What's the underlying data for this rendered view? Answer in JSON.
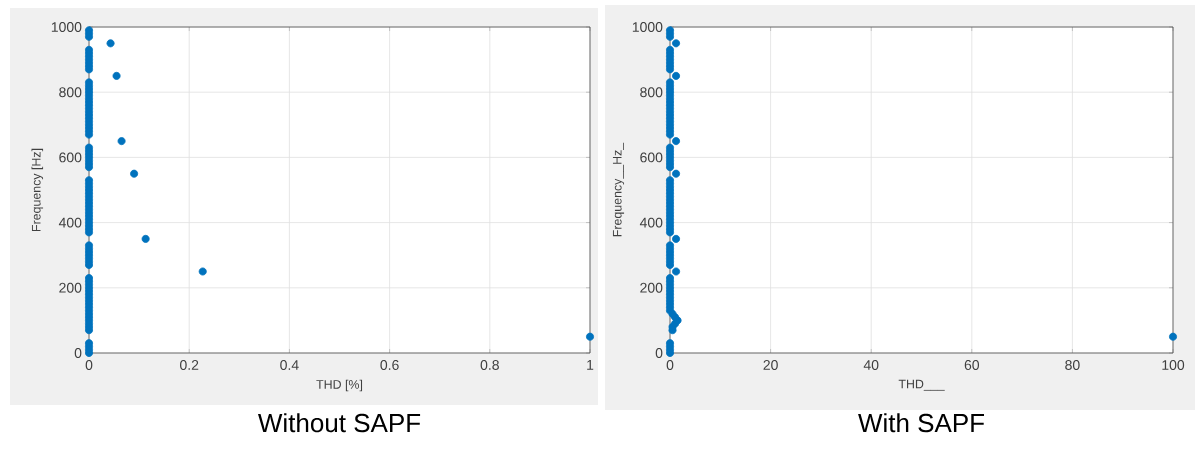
{
  "chart_data": [
    {
      "type": "scatter",
      "title": "Without SAPF",
      "xlabel": "THD [%]",
      "ylabel": "Frequency [Hz]",
      "color": "#0072bd",
      "marker": "circle",
      "grid": true,
      "xlim": [
        0,
        1
      ],
      "ylim": [
        0,
        1000
      ],
      "xticks": [
        0,
        0.2,
        0.4,
        0.6,
        0.8,
        1
      ],
      "yticks": [
        0,
        200,
        400,
        600,
        800,
        1000
      ],
      "values": [
        0,
        10,
        20,
        30,
        50,
        70,
        80,
        90,
        100,
        110,
        120,
        130,
        140,
        150,
        160,
        170,
        180,
        190,
        200,
        210,
        220,
        230,
        250,
        270,
        280,
        290,
        300,
        310,
        320,
        330,
        350,
        370,
        380,
        390,
        400,
        410,
        420,
        430,
        440,
        450,
        460,
        470,
        480,
        490,
        500,
        510,
        520,
        530,
        550,
        570,
        580,
        590,
        600,
        610,
        620,
        630,
        650,
        670,
        680,
        690,
        700,
        710,
        720,
        730,
        740,
        750,
        760,
        770,
        780,
        790,
        800,
        810,
        820,
        830,
        850,
        870,
        880,
        890,
        900,
        910,
        920,
        930,
        950,
        970,
        980,
        990
      ],
      "x": [
        0,
        0,
        0,
        0,
        1,
        0,
        0,
        0,
        0,
        0,
        0,
        0,
        0,
        0,
        0,
        0,
        0,
        0,
        0,
        0,
        0,
        0,
        0.227,
        0,
        0,
        0,
        0,
        0,
        0,
        0,
        0.113,
        0,
        0,
        0,
        0,
        0,
        0,
        0,
        0,
        0,
        0,
        0,
        0,
        0,
        0,
        0,
        0,
        0,
        0.09,
        0,
        0,
        0,
        0,
        0,
        0,
        0,
        0.065,
        0,
        0,
        0,
        0,
        0,
        0,
        0,
        0,
        0,
        0,
        0,
        0,
        0,
        0,
        0,
        0,
        0,
        0.055,
        0,
        0,
        0,
        0,
        0,
        0,
        0,
        0.043,
        0,
        0,
        0
      ]
    },
    {
      "type": "scatter",
      "title": "With SAPF",
      "xlabel": "THD___",
      "ylabel": "Frequency__Hz_",
      "color": "#0072bd",
      "marker": "circle",
      "grid": true,
      "xlim": [
        0,
        100
      ],
      "ylim": [
        0,
        1000
      ],
      "xticks": [
        0,
        20,
        40,
        60,
        80,
        100
      ],
      "yticks": [
        0,
        200,
        400,
        600,
        800,
        1000
      ],
      "values": [
        0,
        10,
        20,
        30,
        50,
        70,
        80,
        90,
        100,
        110,
        120,
        130,
        140,
        150,
        160,
        170,
        180,
        190,
        200,
        210,
        220,
        230,
        250,
        270,
        280,
        290,
        300,
        310,
        320,
        330,
        350,
        370,
        380,
        390,
        400,
        410,
        420,
        430,
        440,
        450,
        460,
        470,
        480,
        490,
        500,
        510,
        520,
        530,
        550,
        570,
        580,
        590,
        600,
        610,
        620,
        630,
        650,
        670,
        680,
        690,
        700,
        710,
        720,
        730,
        740,
        750,
        760,
        770,
        780,
        790,
        800,
        810,
        820,
        830,
        850,
        870,
        880,
        890,
        900,
        910,
        920,
        930,
        950,
        970,
        980,
        990
      ],
      "x": [
        0,
        0,
        0,
        0,
        100,
        0.5,
        0.5,
        1,
        1.5,
        1,
        0.5,
        0,
        0,
        0,
        0,
        0,
        0,
        0,
        0,
        0,
        0,
        0,
        1.2,
        0,
        0,
        0,
        0,
        0,
        0,
        0,
        1.2,
        0,
        0,
        0,
        0,
        0,
        0,
        0,
        0,
        0,
        0,
        0,
        0,
        0,
        0,
        0,
        0,
        0,
        1.2,
        0,
        0,
        0,
        0,
        0,
        0,
        0,
        1.2,
        0,
        0,
        0,
        0,
        0,
        0,
        0,
        0,
        0,
        0,
        0,
        0,
        0,
        0,
        0,
        0,
        0,
        1.2,
        0,
        0,
        0,
        0,
        0,
        0,
        0,
        1.2,
        0,
        0,
        0
      ]
    }
  ]
}
